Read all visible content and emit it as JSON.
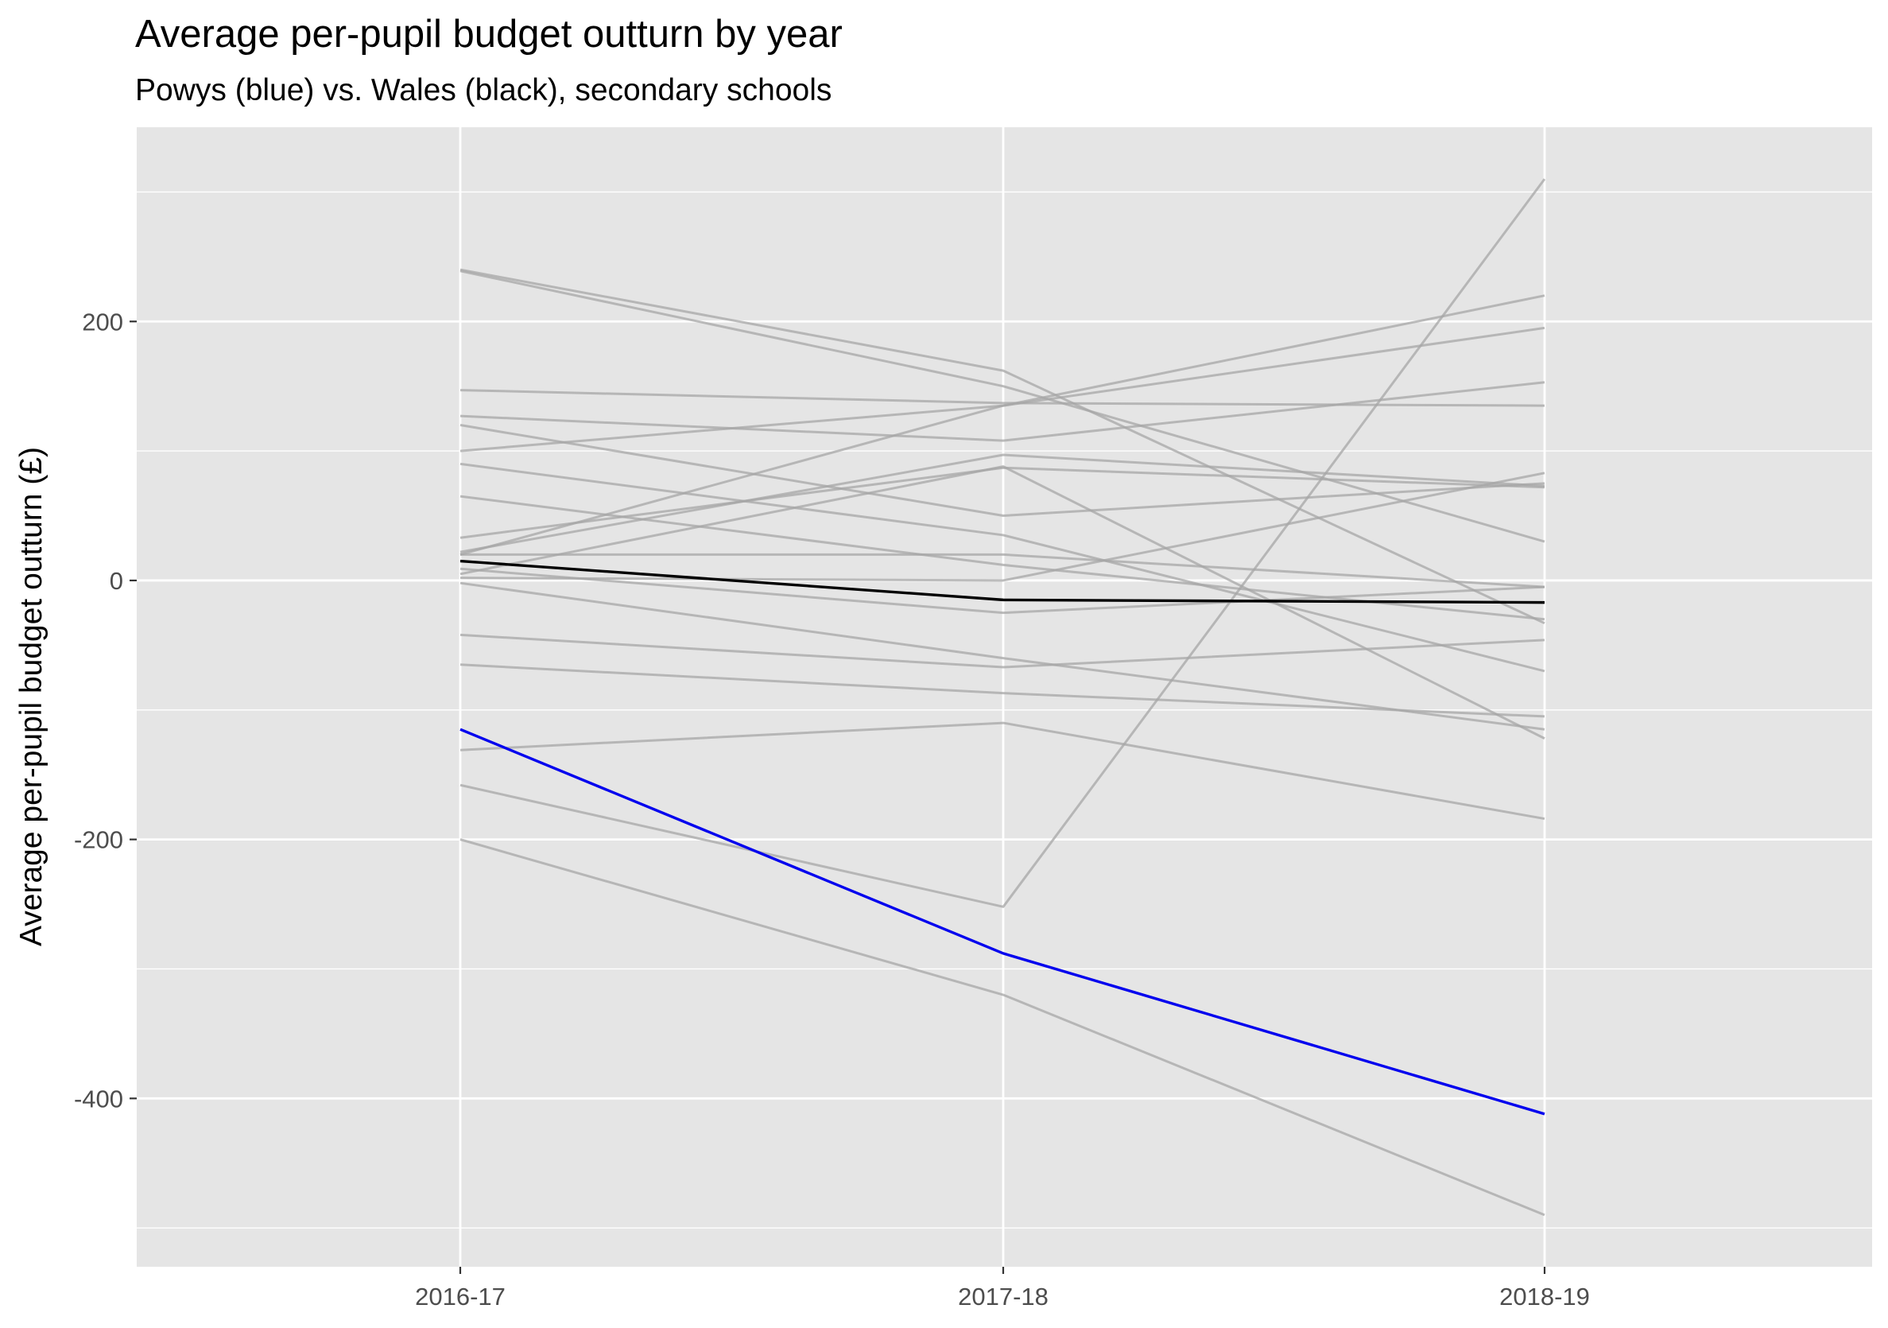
{
  "chart_data": {
    "type": "line",
    "title": "Average per-pupil budget outturn by year",
    "subtitle": "Powys (blue) vs. Wales (black), secondary schools",
    "xlabel": "",
    "ylabel": "Average per-pupil budget outturn (£)",
    "categories": [
      "2016-17",
      "2017-18",
      "2018-19"
    ],
    "y_ticks": [
      -400,
      -200,
      0,
      200
    ],
    "ylim": [
      -530,
      350
    ],
    "grid": true,
    "legend": "none",
    "colors": {
      "panel": "#e5e5e5",
      "grid": "#ffffff",
      "other": "#a6a6a6",
      "wales": "#000000",
      "powys": "#0000ee"
    },
    "series_other": [
      {
        "values": [
          240,
          162,
          -33
        ]
      },
      {
        "values": [
          239,
          150,
          30
        ]
      },
      {
        "values": [
          147,
          137,
          135
        ]
      },
      {
        "values": [
          127,
          108,
          153
        ]
      },
      {
        "values": [
          120,
          50,
          75
        ]
      },
      {
        "values": [
          100,
          135,
          195
        ]
      },
      {
        "values": [
          90,
          35,
          -70
        ]
      },
      {
        "values": [
          65,
          12,
          -30
        ]
      },
      {
        "values": [
          33,
          87,
          72
        ]
      },
      {
        "values": [
          22,
          97,
          73
        ]
      },
      {
        "values": [
          20,
          20,
          -5
        ]
      },
      {
        "values": [
          20,
          135,
          220
        ]
      },
      {
        "values": [
          9,
          -25,
          -5
        ]
      },
      {
        "values": [
          2,
          0,
          83
        ]
      },
      {
        "values": [
          -2,
          -60,
          -115
        ]
      },
      {
        "values": [
          -42,
          -67,
          -46
        ]
      },
      {
        "values": [
          -65,
          -87,
          -105
        ]
      },
      {
        "values": [
          -131,
          -110,
          -184
        ]
      },
      {
        "values": [
          -158,
          -252,
          310
        ]
      },
      {
        "values": [
          5,
          88,
          -122
        ]
      },
      {
        "values": [
          -200,
          -320,
          -490
        ]
      }
    ],
    "series_wales": {
      "name": "Wales",
      "values": [
        15,
        -15,
        -17
      ]
    },
    "series_powys": {
      "name": "Powys",
      "values": [
        -115,
        -288,
        -412
      ]
    }
  }
}
